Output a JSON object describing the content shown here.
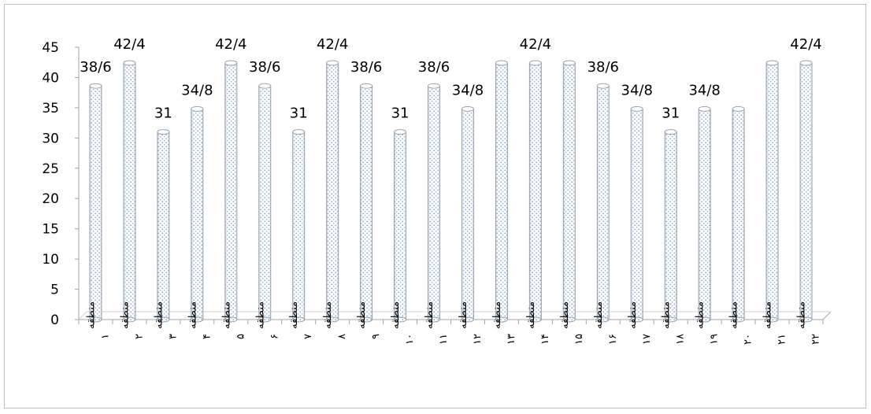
{
  "chart_data": {
    "type": "bar",
    "title": "",
    "xlabel": "",
    "ylabel": "",
    "ylim": [
      0,
      45
    ],
    "yticks": [
      0,
      5,
      10,
      15,
      20,
      25,
      30,
      35,
      40,
      45
    ],
    "grid": false,
    "legend": "none",
    "categories": [
      "منطقه ۱",
      "منطقه ۲",
      "منطقه ۳",
      "منطقه ۴",
      "منطقه ۵",
      "منطقه ۶",
      "منطقه ۷",
      "منطقه ۸",
      "منطقه ۹",
      "منطقه ۱۰",
      "منطقه ۱۱",
      "منطقه ۱۲",
      "منطقه ۱۳",
      "منطقه ۱۴",
      "منطقه ۱۵",
      "منطقه ۱۶",
      "منطقه ۱۷",
      "منطقه ۱۸",
      "منطقه ۱۹",
      "منطقه ۲۰",
      "منطقه ۲۱",
      "منطقه ۲۲"
    ],
    "values": [
      38.6,
      42.4,
      31,
      34.8,
      42.4,
      38.6,
      31,
      42.4,
      38.6,
      31,
      38.6,
      34.8,
      42.4,
      42.4,
      42.4,
      38.6,
      34.8,
      31,
      34.8,
      34.8,
      42.4,
      42.4
    ],
    "data_labels": [
      "38/6",
      "42/4",
      "31",
      "34/8",
      "42/4",
      "38/6",
      "31",
      "42/4",
      "38/6",
      "31",
      "38/6",
      "34/8",
      "",
      "42/4",
      "",
      "38/6",
      "34/8",
      "31",
      "34/8",
      "",
      "",
      "42/4"
    ],
    "colors": {
      "bar_fill": "#ffffff",
      "bar_dots": "#5b8fd0",
      "bar_edge": "#9aa3ad",
      "axis": "#a6a6a6"
    }
  }
}
